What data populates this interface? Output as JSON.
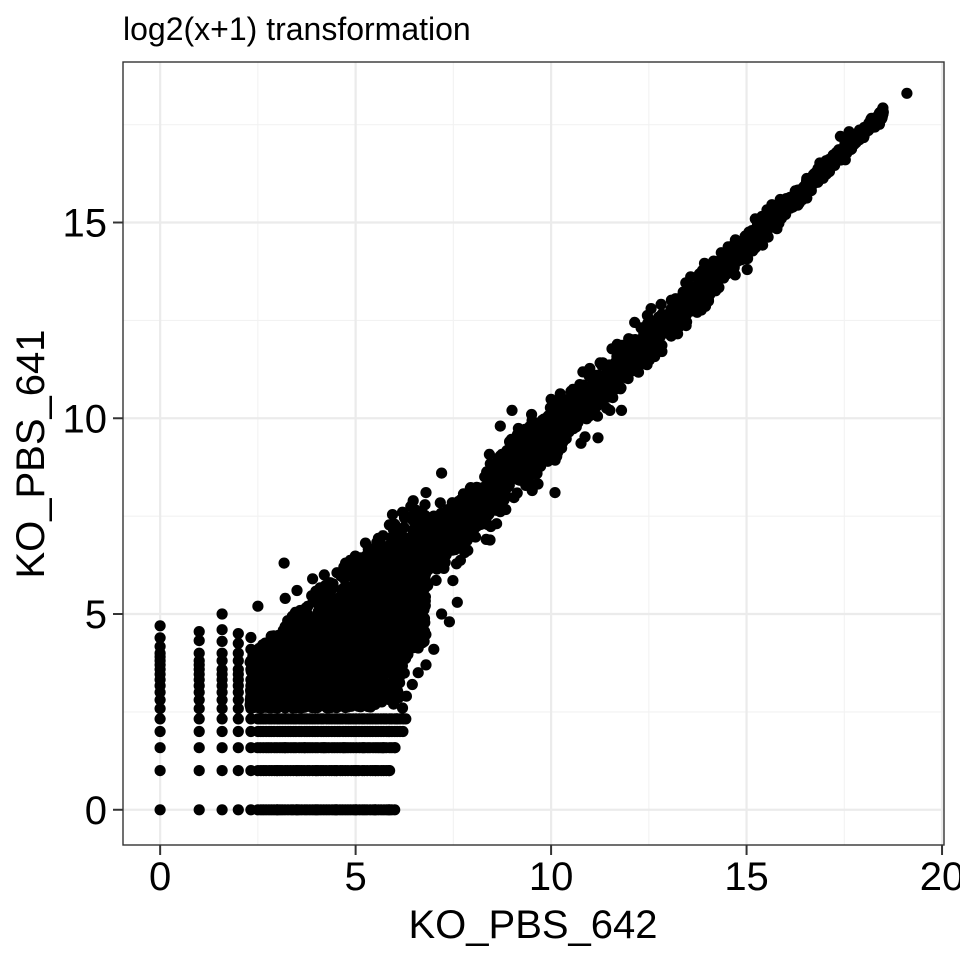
{
  "chart_data": {
    "type": "scatter",
    "title": "log2(x+1) transformation",
    "xlabel": "KO_PBS_642",
    "ylabel": "KO_PBS_641",
    "xlim": [
      -0.95,
      20.05
    ],
    "ylim": [
      -0.9,
      19.1
    ],
    "x_ticks": [
      0,
      5,
      10,
      15,
      20
    ],
    "x_tick_labels": [
      "0",
      "5",
      "10",
      "15",
      "20"
    ],
    "y_ticks": [
      0,
      5,
      10,
      15
    ],
    "y_tick_labels": [
      "0",
      "5",
      "10",
      "15"
    ],
    "grid": true,
    "theme": "black-and-white",
    "point_color": "#000000",
    "discrete_x_columns": [
      0,
      1,
      1.585,
      2,
      2.322
    ],
    "discrete_y_rows": [
      0,
      1,
      1.585,
      2,
      2.322
    ],
    "points": [
      [
        0,
        0
      ],
      [
        0,
        1
      ],
      [
        0,
        1.585
      ],
      [
        0,
        2
      ],
      [
        0,
        2.322
      ],
      [
        0,
        2.585
      ],
      [
        0,
        2.807
      ],
      [
        0,
        3
      ],
      [
        0,
        3.17
      ],
      [
        0,
        3.322
      ],
      [
        0,
        3.459
      ],
      [
        0,
        3.585
      ],
      [
        0,
        3.7
      ],
      [
        0,
        3.807
      ],
      [
        0,
        3.907
      ],
      [
        0,
        4
      ],
      [
        0,
        4.17
      ],
      [
        0,
        4.392
      ],
      [
        0,
        4.7
      ],
      [
        1,
        0
      ],
      [
        1,
        1
      ],
      [
        1,
        1.585
      ],
      [
        1,
        2
      ],
      [
        1,
        2.322
      ],
      [
        1,
        2.585
      ],
      [
        1,
        2.807
      ],
      [
        1,
        3
      ],
      [
        1,
        3.17
      ],
      [
        1,
        3.322
      ],
      [
        1,
        3.459
      ],
      [
        1,
        3.585
      ],
      [
        1,
        3.7
      ],
      [
        1,
        3.807
      ],
      [
        1,
        4
      ],
      [
        1,
        4.32
      ],
      [
        1,
        4.55
      ],
      [
        1.585,
        0
      ],
      [
        1.585,
        1
      ],
      [
        1.585,
        1.585
      ],
      [
        1.585,
        2
      ],
      [
        1.585,
        2.322
      ],
      [
        1.585,
        2.585
      ],
      [
        1.585,
        2.807
      ],
      [
        1.585,
        3
      ],
      [
        1.585,
        3.17
      ],
      [
        1.585,
        3.322
      ],
      [
        1.585,
        3.459
      ],
      [
        1.585,
        3.585
      ],
      [
        1.585,
        3.807
      ],
      [
        1.585,
        4
      ],
      [
        1.585,
        4.3
      ],
      [
        1.585,
        4.6
      ],
      [
        1.585,
        5.0
      ],
      [
        2,
        0
      ],
      [
        2,
        1
      ],
      [
        2,
        1.585
      ],
      [
        2,
        2
      ],
      [
        2,
        2.322
      ],
      [
        2,
        2.585
      ],
      [
        2,
        2.807
      ],
      [
        2,
        3
      ],
      [
        2,
        3.17
      ],
      [
        2,
        3.322
      ],
      [
        2,
        3.459
      ],
      [
        2,
        3.585
      ],
      [
        2,
        3.807
      ],
      [
        2,
        4
      ],
      [
        2,
        4.25
      ],
      [
        2,
        4.5
      ],
      [
        2.322,
        0
      ],
      [
        2.322,
        1
      ],
      [
        2.322,
        1.585
      ],
      [
        2.322,
        2
      ],
      [
        2.322,
        2.322
      ],
      [
        2.322,
        2.585
      ],
      [
        2.322,
        2.807
      ],
      [
        2.322,
        3
      ],
      [
        2.322,
        3.17
      ],
      [
        2.322,
        3.322
      ],
      [
        2.322,
        3.585
      ],
      [
        2.322,
        3.807
      ],
      [
        2.322,
        4.1
      ],
      [
        2.322,
        4.4
      ],
      [
        3.17,
        6.3
      ],
      [
        3.2,
        5.4
      ],
      [
        2.5,
        5.2
      ],
      [
        3.5,
        5.6
      ],
      [
        4.2,
        6.0
      ],
      [
        4.7,
        6.2
      ],
      [
        5.1,
        6.4
      ],
      [
        5.6,
        6.6
      ],
      [
        4.35,
        5.8
      ],
      [
        3.9,
        5.9
      ],
      [
        3.0,
        0
      ],
      [
        3.5,
        0
      ],
      [
        4.0,
        0
      ],
      [
        4.5,
        0
      ],
      [
        5.0,
        0
      ],
      [
        5.5,
        0
      ],
      [
        5.85,
        0
      ],
      [
        6.0,
        0
      ],
      [
        3.0,
        1
      ],
      [
        3.5,
        1
      ],
      [
        4.0,
        1
      ],
      [
        4.5,
        1
      ],
      [
        5.0,
        1
      ],
      [
        5.5,
        1
      ],
      [
        5.85,
        1
      ],
      [
        3.2,
        1.585
      ],
      [
        3.7,
        1.585
      ],
      [
        4.2,
        1.585
      ],
      [
        4.7,
        1.585
      ],
      [
        5.2,
        1.585
      ],
      [
        5.7,
        1.585
      ],
      [
        6.0,
        1.585
      ],
      [
        5.85,
        2
      ],
      [
        6.05,
        2.322
      ],
      [
        6.2,
        2.6
      ],
      [
        6.3,
        2.9
      ],
      [
        6.45,
        3.2
      ],
      [
        6.6,
        3.5
      ],
      [
        6.8,
        3.7
      ],
      [
        6.2,
        3.9
      ],
      [
        7.4,
        4.8
      ],
      [
        7.0,
        4.1
      ],
      [
        7.6,
        5.3
      ],
      [
        7.2,
        5.0
      ],
      [
        5.7,
        7.0
      ],
      [
        6.2,
        7.6
      ],
      [
        6.8,
        8.1
      ],
      [
        7.2,
        8.6
      ],
      [
        7.0,
        7.5
      ],
      [
        9.0,
        10.2
      ],
      [
        8.7,
        9.8
      ],
      [
        10.1,
        8.1
      ],
      [
        11.2,
        9.5
      ],
      [
        11.8,
        10.2
      ],
      [
        19.1,
        18.3
      ],
      [
        18.4,
        17.8
      ],
      [
        18.2,
        17.5
      ],
      [
        17.6,
        17.1
      ],
      [
        17.4,
        17.2
      ]
    ]
  }
}
